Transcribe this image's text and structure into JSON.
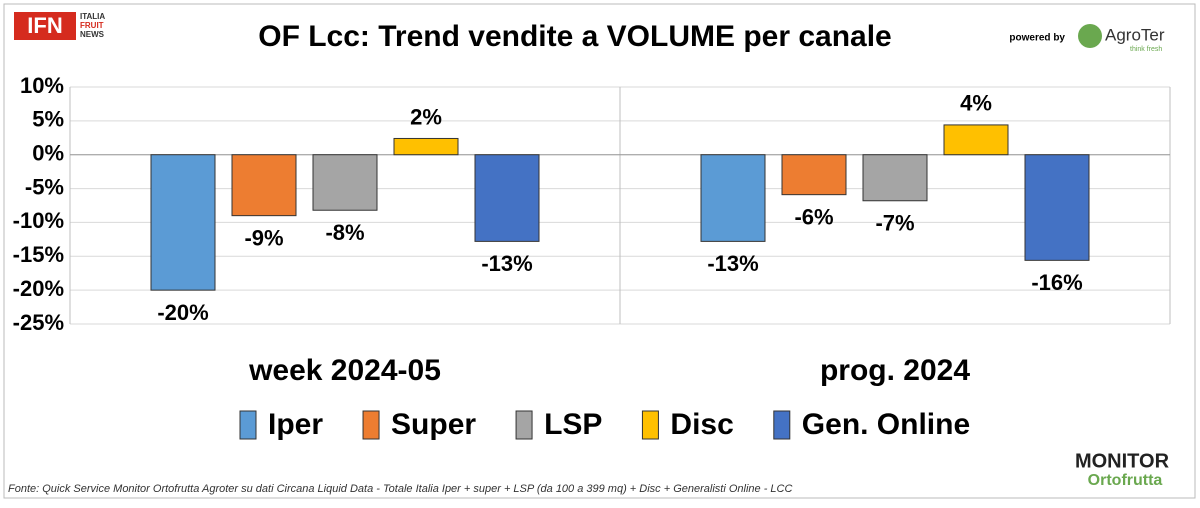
{
  "header": {
    "logo": "IFN",
    "logo_sub": [
      "ITALIA",
      "FRUIT",
      "NEWS"
    ],
    "powered_by": "powered by",
    "brand": "AgroTer",
    "brand_tagline": "think fresh"
  },
  "chart_data": {
    "type": "bar",
    "title": "OF Lcc: Trend vendite a VOLUME per canale",
    "categories": [
      "week 2024-05",
      "prog. 2024"
    ],
    "series": [
      {
        "name": "Iper",
        "color": "#5b9bd5",
        "values": [
          -20,
          -12.8
        ],
        "value_labels": [
          "-20%",
          "-13%"
        ]
      },
      {
        "name": "Super",
        "color": "#ed7d31",
        "values": [
          -9,
          -5.9
        ],
        "value_labels": [
          "-9%",
          "-6%"
        ]
      },
      {
        "name": "LSP",
        "color": "#a5a5a5",
        "values": [
          -8.2,
          -6.8
        ],
        "value_labels": [
          "-8%",
          "-7%"
        ]
      },
      {
        "name": "Disc",
        "color": "#ffc000",
        "values": [
          2.4,
          4.4
        ],
        "value_labels": [
          "2%",
          "4%"
        ]
      },
      {
        "name": "Gen. Online",
        "color": "#4472c4",
        "values": [
          -12.8,
          -15.6
        ],
        "value_labels": [
          "-13%",
          "-16%"
        ]
      }
    ],
    "ylim": [
      -25,
      10
    ],
    "yticks": [
      {
        "value": -25,
        "label": "-25%"
      },
      {
        "value": -20,
        "label": "-20%"
      },
      {
        "value": -15,
        "label": "-15%"
      },
      {
        "value": -10,
        "label": "-10%"
      },
      {
        "value": -5,
        "label": "-5%"
      },
      {
        "value": 0,
        "label": "0%"
      },
      {
        "value": 5,
        "label": "5%"
      },
      {
        "value": 10,
        "label": "10%"
      }
    ],
    "grid": true,
    "legend": "bottom"
  },
  "footer": {
    "source": "Fonte: Quick Service Monitor Ortofrutta Agroter su dati Circana Liquid Data - Totale Italia Iper + super + LSP (da 100 a 399 mq) + Disc + Generalisti Online - LCC",
    "monitor": "MONITOR",
    "monitor_sub": "Ortofrutta"
  }
}
